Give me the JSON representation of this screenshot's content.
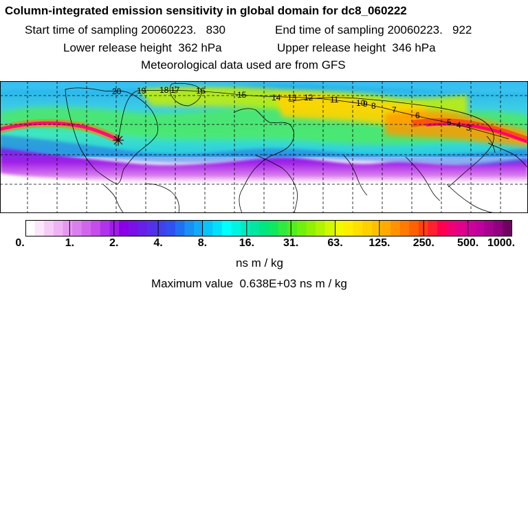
{
  "title": "Column-integrated emission sensitivity in global domain for dc8_060222",
  "sampling": {
    "start": "Start time of sampling 20060223.   830",
    "end": "End time of sampling 20060223.   922"
  },
  "release": {
    "lower": "Lower release height  362 hPa",
    "upper": "Upper release height  346 hPa"
  },
  "met_source": "Meteorological data used are from GFS",
  "colorbar": {
    "labels": [
      "0.",
      "1.",
      "2.",
      "4.",
      "8.",
      "16.",
      "31.",
      "63.",
      "125.",
      "250.",
      "500.",
      "1000."
    ],
    "unit": "ns m / kg",
    "colors": [
      "#ffffff",
      "#fbe6fb",
      "#f5ccf5",
      "#efb3f3",
      "#e699f0",
      "#dc7fee",
      "#d166ec",
      "#c44deb",
      "#b233ea",
      "#a01ae8",
      "#8a00e6",
      "#7a10e8",
      "#6820e8",
      "#5530ea",
      "#4240ec",
      "#3050f0",
      "#2070f2",
      "#1890f5",
      "#10aaf8",
      "#08c4fa",
      "#00e0fd",
      "#00ffff",
      "#00f5e0",
      "#00ecc0",
      "#00e6a0",
      "#00e680",
      "#10e860",
      "#30ea40",
      "#50ee20",
      "#70f010",
      "#90f200",
      "#b0f400",
      "#d0f800",
      "#f0fa00",
      "#ffee00",
      "#ffe000",
      "#ffd000",
      "#ffc000",
      "#ffaa00",
      "#ff9200",
      "#ff7a00",
      "#ff6000",
      "#ff4010",
      "#ff2030",
      "#ff0050",
      "#f00070",
      "#e0008a",
      "#d0009a",
      "#c0009c",
      "#a80090",
      "#900080",
      "#700060"
    ]
  },
  "max_value": "Maximum value  0.638E+03 ns m / kg",
  "map": {
    "time_labels": [
      "20",
      "19",
      "18",
      "17",
      "16",
      "15",
      "14",
      "13",
      "12",
      "11",
      "10",
      "9",
      "8",
      "7",
      "6",
      "5",
      "4",
      "3"
    ],
    "release_marker": "star",
    "colors": {
      "background": "#ffffff",
      "land_outline": "#000000",
      "grid": "#000000"
    }
  }
}
